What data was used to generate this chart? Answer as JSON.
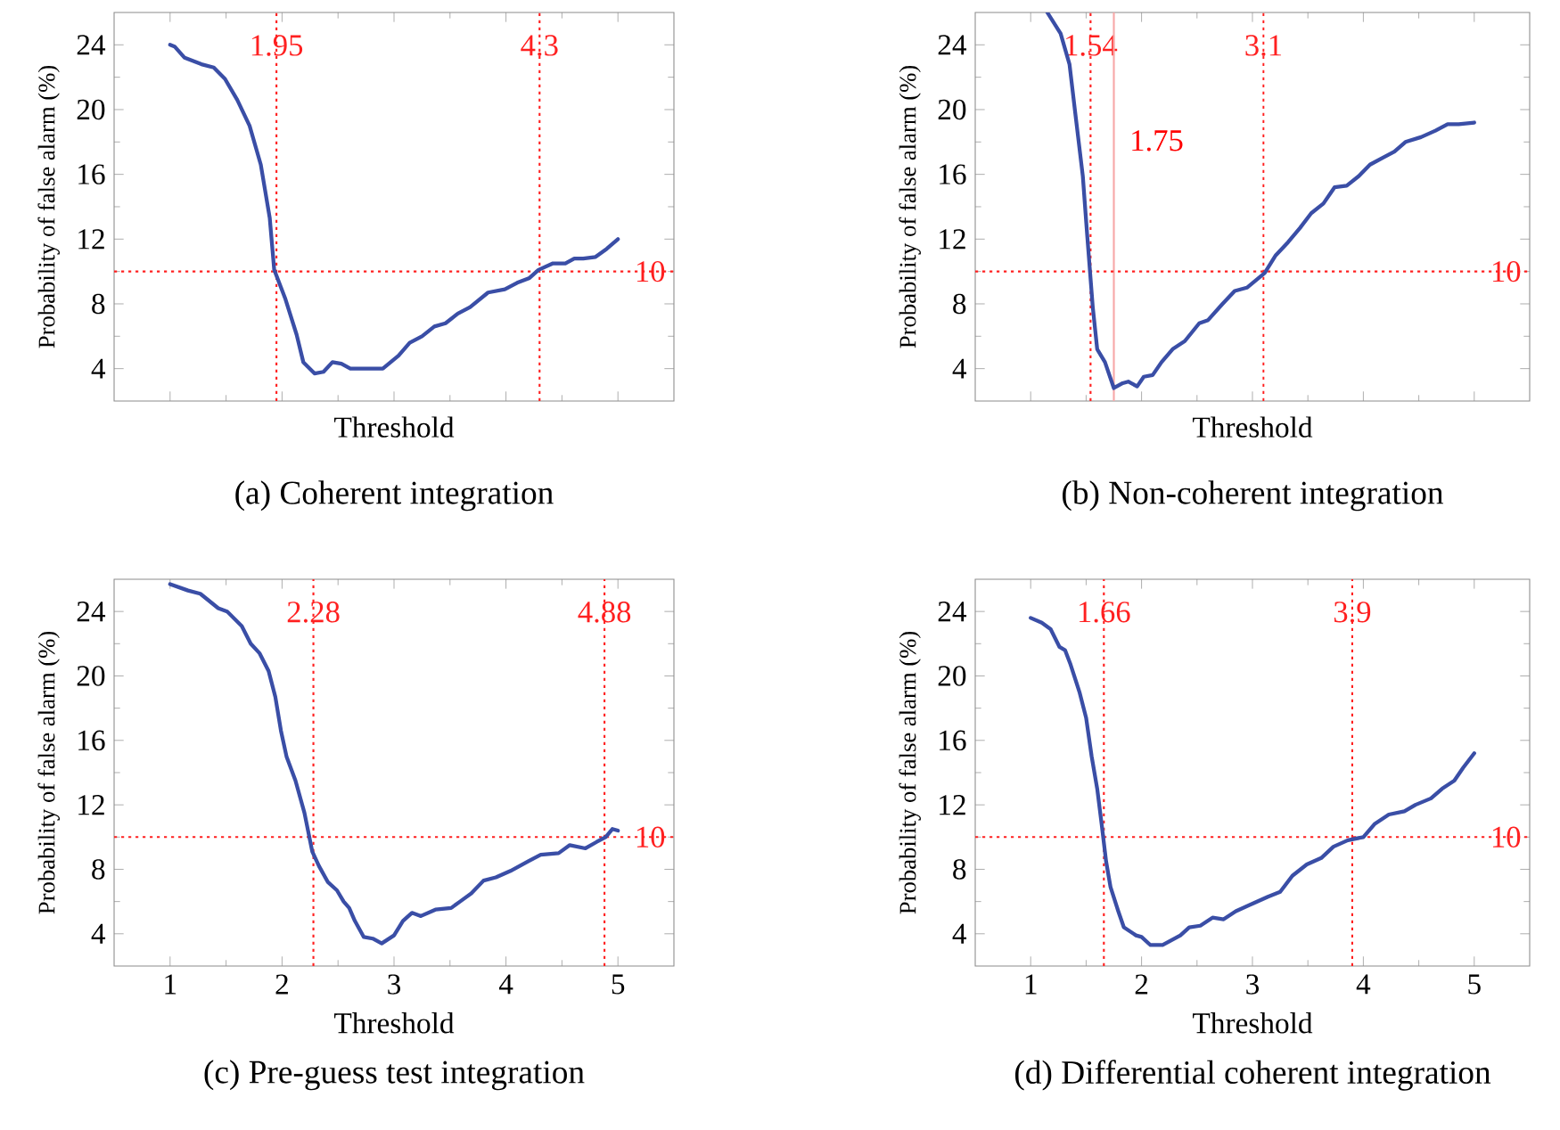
{
  "chart_data": [
    {
      "type": "line",
      "title": "(a) Coherent integration",
      "xlabel": "Threshold",
      "ylabel": "Probability of false alarm (%)",
      "xlim": [
        0.5,
        5.5
      ],
      "ylim": [
        2,
        26
      ],
      "xticks": [
        1,
        2,
        3,
        4,
        5
      ],
      "yticks": [
        4,
        8,
        12,
        16,
        20,
        24
      ],
      "tick_labels": "y",
      "series": [
        {
          "color": "#3a4ea6",
          "x": [
            1,
            1.04,
            1.13,
            1.28,
            1.39,
            1.49,
            1.6,
            1.71,
            1.81,
            1.89,
            1.93,
            2.03,
            2.13,
            2.19,
            2.29,
            2.37,
            2.45,
            2.53,
            2.61,
            2.9,
            3.04,
            3.14,
            3.25,
            3.36,
            3.46,
            3.57,
            3.68,
            3.84,
            3.99,
            4.1,
            4.21,
            4.29,
            4.42,
            4.53,
            4.61,
            4.69,
            4.8,
            4.9,
            5
          ],
          "values": [
            24,
            23.9,
            23.2,
            22.8,
            22.6,
            21.9,
            20.6,
            19,
            16.6,
            13.3,
            10.1,
            8.3,
            6.1,
            4.4,
            3.7,
            3.8,
            4.4,
            4.3,
            4,
            4,
            4.8,
            5.6,
            6,
            6.6,
            6.8,
            7.4,
            7.8,
            8.7,
            8.9,
            9.3,
            9.6,
            10.1,
            10.5,
            10.5,
            10.8,
            10.8,
            10.9,
            11.4,
            12
          ]
        }
      ],
      "ref_lines": [
        {
          "axis": "x",
          "value": 1.95,
          "color": "#ff2020",
          "line_style": "dotted",
          "label": "1.95"
        },
        {
          "axis": "x",
          "value": 4.3,
          "color": "#ff2020",
          "line_style": "dotted",
          "label": "4.3"
        },
        {
          "axis": "y",
          "value": 10,
          "color": "#ff2020",
          "line_style": "dotted",
          "label": "10"
        }
      ]
    },
    {
      "type": "line",
      "title": "(b) Non-coherent integration",
      "xlabel": "Threshold",
      "ylabel": "Probability of false alarm (%)",
      "xlim": [
        0.5,
        5.5
      ],
      "ylim": [
        2,
        26
      ],
      "xticks": [
        1,
        2,
        3,
        4,
        5
      ],
      "yticks": [
        4,
        8,
        12,
        16,
        20,
        24
      ],
      "tick_labels": "y",
      "series": [
        {
          "color": "#3a4ea6",
          "x": [
            1.15,
            1.27,
            1.35,
            1.4,
            1.47,
            1.51,
            1.56,
            1.6,
            1.67,
            1.75,
            1.83,
            1.88,
            1.96,
            2.02,
            2.1,
            2.18,
            2.28,
            2.39,
            2.52,
            2.6,
            2.73,
            2.84,
            2.95,
            3.11,
            3.21,
            3.32,
            3.43,
            3.53,
            3.64,
            3.74,
            3.85,
            3.96,
            4.06,
            4.17,
            4.28,
            4.38,
            4.52,
            4.65,
            4.76,
            4.86,
            5
          ],
          "values": [
            26,
            24.7,
            22.8,
            19.9,
            15.9,
            12.2,
            7.8,
            5.2,
            4.4,
            2.8,
            3.1,
            3.2,
            2.9,
            3.5,
            3.6,
            4.4,
            5.2,
            5.7,
            6.8,
            7,
            8,
            8.8,
            9,
            9.9,
            11,
            11.8,
            12.7,
            13.6,
            14.2,
            15.2,
            15.3,
            15.9,
            16.6,
            17,
            17.4,
            18,
            18.3,
            18.7,
            19.1,
            19.1,
            19.2
          ]
        }
      ],
      "ref_lines": [
        {
          "axis": "x",
          "value": 1.54,
          "color": "#ff2020",
          "line_style": "dotted",
          "label": "1.54"
        },
        {
          "axis": "x",
          "value": 1.75,
          "color": "#f7a8a8",
          "line_style": "solid",
          "label": "1.75"
        },
        {
          "axis": "x",
          "value": 3.1,
          "color": "#ff2020",
          "line_style": "dotted",
          "label": "3.1"
        },
        {
          "axis": "y",
          "value": 10,
          "color": "#ff2020",
          "line_style": "dotted",
          "label": "10"
        }
      ]
    },
    {
      "type": "line",
      "title": "(c) Pre-guess test integration",
      "xlabel": "Threshold",
      "ylabel": "Probability of false alarm (%)",
      "xlim": [
        0.5,
        5.5
      ],
      "ylim": [
        2,
        26
      ],
      "xticks": [
        1,
        2,
        3,
        4,
        5
      ],
      "yticks": [
        4,
        8,
        12,
        16,
        20,
        24
      ],
      "series": [
        {
          "color": "#3a4ea6",
          "x": [
            1,
            1.16,
            1.27,
            1.43,
            1.51,
            1.64,
            1.72,
            1.8,
            1.88,
            1.94,
            1.99,
            2.04,
            2.12,
            2.2,
            2.27,
            2.33,
            2.41,
            2.49,
            2.55,
            2.6,
            2.65,
            2.73,
            2.81,
            2.89,
            3,
            3.08,
            3.16,
            3.24,
            3.37,
            3.51,
            3.59,
            3.69,
            3.8,
            3.91,
            4.04,
            4.2,
            4.31,
            4.47,
            4.57,
            4.71,
            4.81,
            4.89,
            4.95,
            5
          ],
          "values": [
            25.7,
            25.3,
            25.1,
            24.2,
            24,
            23.1,
            22,
            21.4,
            20.3,
            18.7,
            16.6,
            15,
            13.5,
            11.5,
            9.1,
            8.2,
            7.2,
            6.7,
            6,
            5.6,
            4.8,
            3.8,
            3.7,
            3.4,
            3.9,
            4.8,
            5.3,
            5.1,
            5.5,
            5.6,
            6,
            6.5,
            7.3,
            7.5,
            7.9,
            8.5,
            8.9,
            9,
            9.5,
            9.3,
            9.7,
            10,
            10.5,
            10.4
          ]
        }
      ],
      "ref_lines": [
        {
          "axis": "x",
          "value": 2.28,
          "color": "#ff2020",
          "line_style": "dotted",
          "label": "2.28"
        },
        {
          "axis": "x",
          "value": 4.88,
          "color": "#ff2020",
          "line_style": "dotted",
          "label": "4.88"
        },
        {
          "axis": "y",
          "value": 10,
          "color": "#ff2020",
          "line_style": "dotted",
          "label": "10"
        }
      ]
    },
    {
      "type": "line",
      "title": "(d) Differential coherent integration",
      "xlabel": "Threshold",
      "ylabel": "Probability of false alarm (%)",
      "xlim": [
        0.5,
        5.5
      ],
      "ylim": [
        2,
        26
      ],
      "xticks": [
        1,
        2,
        3,
        4,
        5
      ],
      "yticks": [
        4,
        8,
        12,
        16,
        20,
        24
      ],
      "series": [
        {
          "color": "#3a4ea6",
          "x": [
            1,
            1.1,
            1.18,
            1.26,
            1.31,
            1.36,
            1.44,
            1.5,
            1.55,
            1.6,
            1.64,
            1.68,
            1.72,
            1.79,
            1.84,
            1.95,
            2,
            2.08,
            2.19,
            2.27,
            2.35,
            2.43,
            2.53,
            2.64,
            2.74,
            2.85,
            3.01,
            3.14,
            3.25,
            3.36,
            3.49,
            3.62,
            3.73,
            3.86,
            4,
            4.1,
            4.23,
            4.37,
            4.47,
            4.61,
            4.71,
            4.82,
            4.9,
            5
          ],
          "values": [
            23.6,
            23.3,
            22.9,
            21.8,
            21.6,
            20.7,
            19,
            17.4,
            15,
            13,
            10.8,
            8.5,
            6.9,
            5.4,
            4.4,
            3.9,
            3.8,
            3.3,
            3.3,
            3.6,
            3.9,
            4.4,
            4.5,
            5,
            4.9,
            5.4,
            5.9,
            6.3,
            6.6,
            7.6,
            8.3,
            8.7,
            9.4,
            9.8,
            10,
            10.8,
            11.4,
            11.6,
            12,
            12.4,
            13,
            13.5,
            14.3,
            15.2
          ]
        }
      ],
      "ref_lines": [
        {
          "axis": "x",
          "value": 1.66,
          "color": "#ff2020",
          "line_style": "dotted",
          "label": "1.66"
        },
        {
          "axis": "x",
          "value": 3.9,
          "color": "#ff2020",
          "line_style": "dotted",
          "label": "3.9"
        },
        {
          "axis": "y",
          "value": 10,
          "color": "#ff2020",
          "line_style": "dotted",
          "label": "10"
        }
      ]
    }
  ]
}
